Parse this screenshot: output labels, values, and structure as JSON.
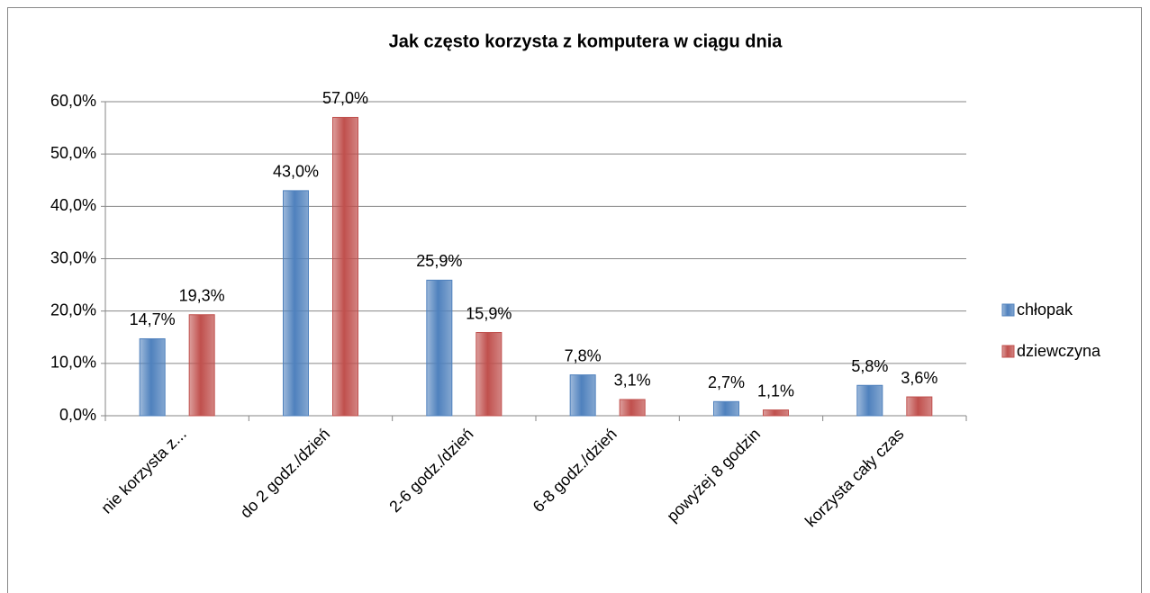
{
  "chart_data": {
    "type": "bar",
    "title": "Jak często korzysta z komputera w ciągu dnia",
    "categories": [
      "nie korzysta z...",
      "do 2 godz./dzień",
      "2-6 godz./dzień",
      "6-8 godz./dzień",
      "powyżej 8 godzin",
      "korzysta cały czas"
    ],
    "series": [
      {
        "name": "chłopak",
        "color": "#4f81bd",
        "values": [
          14.7,
          43.0,
          25.9,
          7.8,
          2.7,
          5.8
        ],
        "value_labels": [
          "14,7%",
          "43,0%",
          "25,9%",
          "7,8%",
          "2,7%",
          "5,8%"
        ]
      },
      {
        "name": "dziewczyna",
        "color": "#c0504d",
        "values": [
          19.3,
          57.0,
          15.9,
          3.1,
          1.1,
          3.6
        ],
        "value_labels": [
          "19,3%",
          "57,0%",
          "15,9%",
          "3,1%",
          "1,1%",
          "3,6%"
        ]
      }
    ],
    "ylim": [
      0,
      60
    ],
    "yticks": [
      {
        "value": 0,
        "label": "0,0%"
      },
      {
        "value": 10,
        "label": "10,0%"
      },
      {
        "value": 20,
        "label": "20,0%"
      },
      {
        "value": 30,
        "label": "30,0%"
      },
      {
        "value": 40,
        "label": "40,0%"
      },
      {
        "value": 50,
        "label": "50,0%"
      },
      {
        "value": 60,
        "label": "60,0%"
      }
    ],
    "grid": true,
    "legend": "right"
  }
}
